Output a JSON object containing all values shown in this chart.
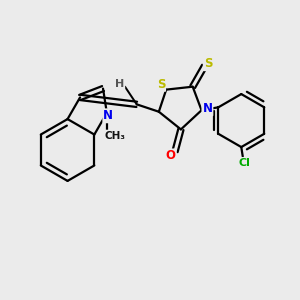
{
  "bg_color": "#ebebeb",
  "atom_colors": {
    "C": "#000000",
    "N": "#0000ee",
    "O": "#ff0000",
    "S": "#bbbb00",
    "Cl": "#00aa00",
    "H": "#555555"
  },
  "bond_color": "#000000",
  "lw": 1.6
}
